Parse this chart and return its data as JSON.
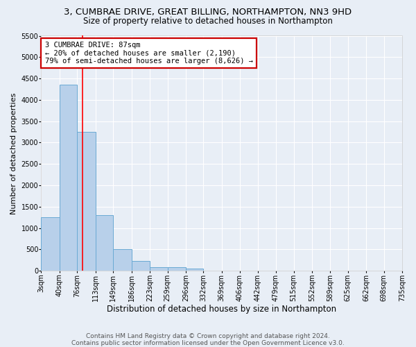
{
  "title1": "3, CUMBRAE DRIVE, GREAT BILLING, NORTHAMPTON, NN3 9HD",
  "title2": "Size of property relative to detached houses in Northampton",
  "xlabel": "Distribution of detached houses by size in Northampton",
  "ylabel": "Number of detached properties",
  "bin_edges": [
    3,
    40,
    76,
    113,
    149,
    186,
    223,
    259,
    296,
    332,
    369,
    406,
    442,
    479,
    515,
    552,
    589,
    625,
    662,
    698,
    735
  ],
  "bar_heights": [
    1250,
    4350,
    3250,
    1300,
    500,
    225,
    90,
    90,
    60,
    0,
    0,
    0,
    0,
    0,
    0,
    0,
    0,
    0,
    0,
    0
  ],
  "bar_color": "#b8d0ea",
  "bar_edge_color": "#6aaad4",
  "bar_edge_width": 0.7,
  "red_line_x": 87,
  "ylim_max": 5500,
  "yticks": [
    0,
    500,
    1000,
    1500,
    2000,
    2500,
    3000,
    3500,
    4000,
    4500,
    5000,
    5500
  ],
  "annotation_line1": "3 CUMBRAE DRIVE: 87sqm",
  "annotation_line2": "← 20% of detached houses are smaller (2,190)",
  "annotation_line3": "79% of semi-detached houses are larger (8,626) →",
  "annotation_box_facecolor": "#ffffff",
  "annotation_box_edgecolor": "#cc0000",
  "bg_color": "#e8eef6",
  "grid_color": "#ffffff",
  "footer1": "Contains HM Land Registry data © Crown copyright and database right 2024.",
  "footer2": "Contains public sector information licensed under the Open Government Licence v3.0.",
  "title1_fontsize": 9.5,
  "title2_fontsize": 8.5,
  "xlabel_fontsize": 8.5,
  "ylabel_fontsize": 8.0,
  "tick_fontsize": 7.0,
  "annotation_fontsize": 7.5,
  "footer_fontsize": 6.5
}
